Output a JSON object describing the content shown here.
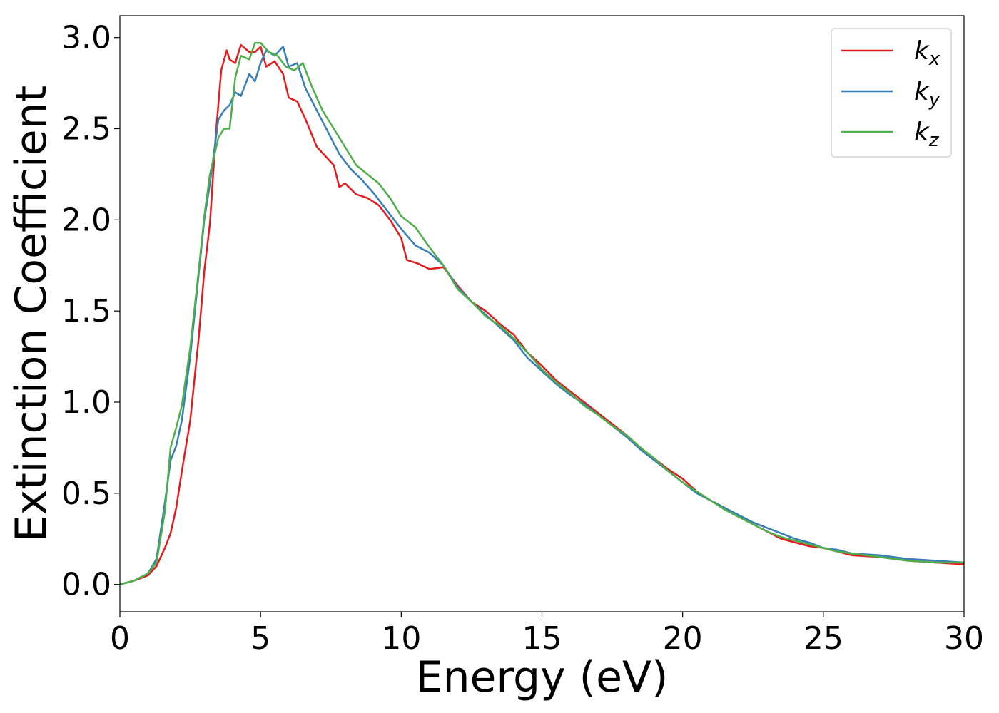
{
  "chart_data": {
    "type": "line",
    "xlabel": "Energy (eV)",
    "ylabel": "Extinction Coefficient",
    "xlim": [
      0,
      30
    ],
    "ylim": [
      -0.15,
      3.12
    ],
    "xticks": [
      "0",
      "5",
      "10",
      "15",
      "20",
      "25",
      "30"
    ],
    "yticks": [
      "0.0",
      "0.5",
      "1.0",
      "1.5",
      "2.0",
      "2.5",
      "3.0"
    ],
    "grid": false,
    "legend_position": "top-right",
    "series": [
      {
        "name": "k",
        "subscript": "x",
        "color": "#e41a1c",
        "x": [
          0,
          0.5,
          1.0,
          1.3,
          1.6,
          1.8,
          2.0,
          2.2,
          2.5,
          2.8,
          3.0,
          3.2,
          3.4,
          3.6,
          3.8,
          3.9,
          4.1,
          4.3,
          4.6,
          4.8,
          5.0,
          5.2,
          5.5,
          5.8,
          6.0,
          6.3,
          6.6,
          7.0,
          7.3,
          7.6,
          7.8,
          8.0,
          8.4,
          8.8,
          9.2,
          9.6,
          10.0,
          10.2,
          10.6,
          11.0,
          11.5,
          12.0,
          12.5,
          13.0,
          13.5,
          14.0,
          14.5,
          15.0,
          15.5,
          16.0,
          16.5,
          17.0,
          17.5,
          18.0,
          18.5,
          19.0,
          19.5,
          20.0,
          20.5,
          21.0,
          21.5,
          22.0,
          22.5,
          23.0,
          23.5,
          24.0,
          24.5,
          25.0,
          25.5,
          26.0,
          27.0,
          28.0,
          29.0,
          30.0
        ],
        "y": [
          0.0,
          0.02,
          0.05,
          0.1,
          0.2,
          0.28,
          0.42,
          0.62,
          0.9,
          1.35,
          1.72,
          1.98,
          2.45,
          2.82,
          2.93,
          2.88,
          2.86,
          2.96,
          2.92,
          2.92,
          2.95,
          2.84,
          2.87,
          2.8,
          2.67,
          2.65,
          2.55,
          2.4,
          2.35,
          2.3,
          2.18,
          2.2,
          2.14,
          2.12,
          2.08,
          2.0,
          1.9,
          1.78,
          1.76,
          1.73,
          1.74,
          1.64,
          1.55,
          1.5,
          1.43,
          1.37,
          1.27,
          1.2,
          1.12,
          1.06,
          1.0,
          0.94,
          0.88,
          0.82,
          0.75,
          0.69,
          0.63,
          0.58,
          0.51,
          0.46,
          0.42,
          0.37,
          0.33,
          0.29,
          0.25,
          0.23,
          0.21,
          0.2,
          0.18,
          0.16,
          0.15,
          0.13,
          0.12,
          0.11
        ]
      },
      {
        "name": "k",
        "subscript": "y",
        "color": "#377eb8",
        "x": [
          0,
          0.5,
          1.0,
          1.3,
          1.6,
          1.8,
          2.0,
          2.2,
          2.5,
          2.8,
          3.0,
          3.2,
          3.5,
          3.7,
          3.9,
          4.1,
          4.3,
          4.6,
          4.8,
          5.0,
          5.2,
          5.5,
          5.8,
          6.0,
          6.3,
          6.6,
          7.0,
          7.4,
          7.8,
          8.2,
          8.6,
          9.0,
          9.5,
          10.0,
          10.5,
          11.0,
          11.5,
          12.0,
          12.5,
          13.0,
          13.5,
          14.0,
          14.5,
          15.0,
          15.5,
          16.0,
          16.5,
          17.0,
          17.5,
          18.0,
          18.5,
          19.0,
          19.5,
          20.0,
          20.5,
          21.0,
          21.5,
          22.0,
          22.5,
          23.0,
          23.5,
          24.0,
          24.5,
          25.0,
          25.5,
          26.0,
          27.0,
          28.0,
          29.0,
          30.0
        ],
        "y": [
          0.0,
          0.02,
          0.06,
          0.14,
          0.45,
          0.68,
          0.76,
          0.9,
          1.25,
          1.7,
          2.0,
          2.2,
          2.55,
          2.6,
          2.63,
          2.7,
          2.68,
          2.8,
          2.76,
          2.86,
          2.93,
          2.9,
          2.95,
          2.84,
          2.86,
          2.72,
          2.6,
          2.48,
          2.36,
          2.28,
          2.22,
          2.15,
          2.05,
          1.95,
          1.86,
          1.82,
          1.75,
          1.63,
          1.55,
          1.48,
          1.41,
          1.34,
          1.24,
          1.17,
          1.1,
          1.04,
          0.99,
          0.93,
          0.87,
          0.81,
          0.74,
          0.68,
          0.62,
          0.56,
          0.5,
          0.46,
          0.42,
          0.38,
          0.34,
          0.31,
          0.28,
          0.25,
          0.23,
          0.2,
          0.19,
          0.17,
          0.16,
          0.14,
          0.13,
          0.12
        ]
      },
      {
        "name": "k",
        "subscript": "z",
        "color": "#4daf4a",
        "x": [
          0,
          0.5,
          1.0,
          1.3,
          1.6,
          1.8,
          2.0,
          2.2,
          2.5,
          2.8,
          3.0,
          3.2,
          3.5,
          3.7,
          3.9,
          4.1,
          4.3,
          4.6,
          4.8,
          5.0,
          5.3,
          5.6,
          5.9,
          6.2,
          6.5,
          6.8,
          7.2,
          7.6,
          8.0,
          8.4,
          8.8,
          9.2,
          9.6,
          10.0,
          10.5,
          11.0,
          11.5,
          12.0,
          12.5,
          13.0,
          13.5,
          14.0,
          14.5,
          15.0,
          15.5,
          16.0,
          16.5,
          17.0,
          17.5,
          18.0,
          18.5,
          19.0,
          19.5,
          20.0,
          20.5,
          21.0,
          21.5,
          22.0,
          22.5,
          23.0,
          23.5,
          24.0,
          24.5,
          25.0,
          25.5,
          26.0,
          27.0,
          28.0,
          29.0,
          30.0
        ],
        "y": [
          0.0,
          0.02,
          0.06,
          0.12,
          0.4,
          0.75,
          0.86,
          0.98,
          1.3,
          1.72,
          2.02,
          2.25,
          2.45,
          2.5,
          2.5,
          2.78,
          2.9,
          2.88,
          2.97,
          2.97,
          2.92,
          2.9,
          2.84,
          2.82,
          2.86,
          2.74,
          2.6,
          2.5,
          2.4,
          2.3,
          2.25,
          2.2,
          2.12,
          2.02,
          1.96,
          1.85,
          1.75,
          1.62,
          1.55,
          1.47,
          1.42,
          1.35,
          1.27,
          1.18,
          1.11,
          1.05,
          0.98,
          0.93,
          0.87,
          0.82,
          0.75,
          0.69,
          0.62,
          0.56,
          0.51,
          0.46,
          0.41,
          0.37,
          0.33,
          0.29,
          0.26,
          0.24,
          0.22,
          0.2,
          0.18,
          0.17,
          0.15,
          0.13,
          0.12,
          0.12
        ]
      }
    ]
  }
}
